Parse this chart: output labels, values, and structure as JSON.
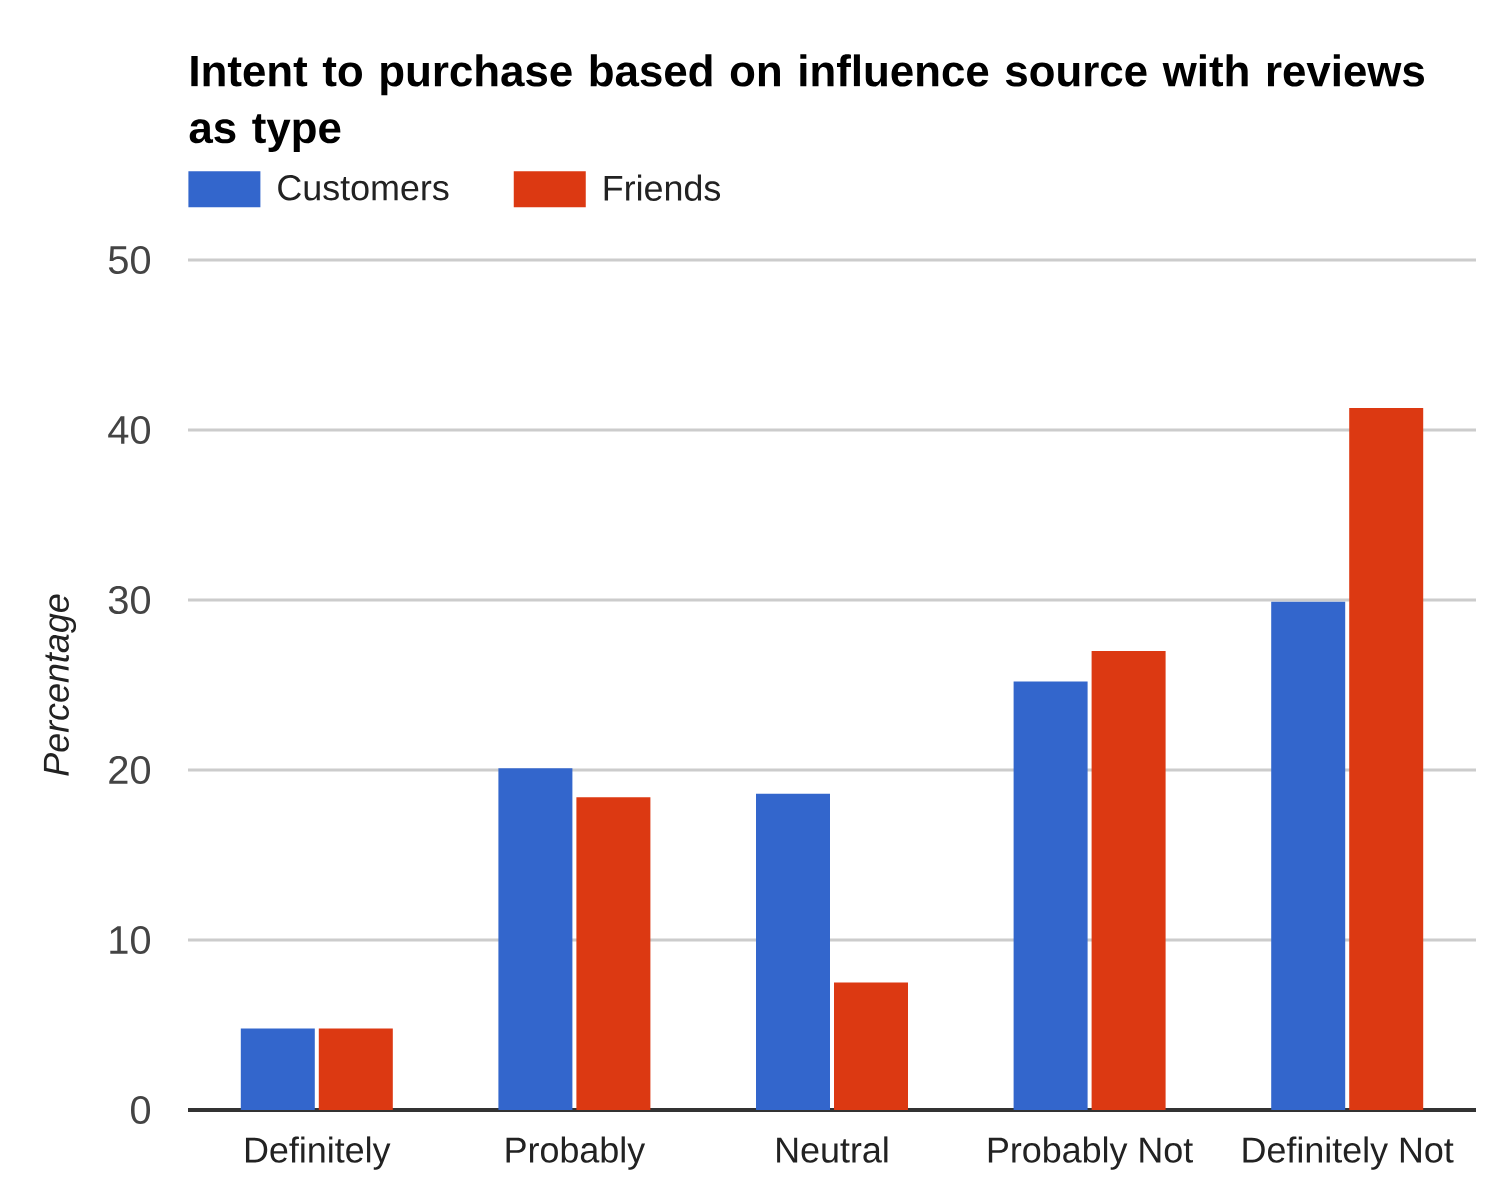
{
  "chart_data": {
    "type": "bar",
    "title": "Intent to purchase based on influence source with reviews as type",
    "ylabel": "Percentage",
    "categories": [
      "Definitely",
      "Probably",
      "Neutral",
      "Probably Not",
      "Definitely Not"
    ],
    "series": [
      {
        "name": "Customers",
        "color": "#3366cc",
        "values": [
          4.8,
          20.1,
          18.6,
          25.2,
          29.9
        ]
      },
      {
        "name": "Friends",
        "color": "#dc3912",
        "values": [
          4.8,
          18.4,
          7.5,
          27.0,
          41.3
        ]
      }
    ],
    "ylim": [
      0,
      50
    ],
    "yticks": [
      0,
      10,
      20,
      30,
      40,
      50
    ],
    "grid": "y",
    "legend": "top left"
  }
}
